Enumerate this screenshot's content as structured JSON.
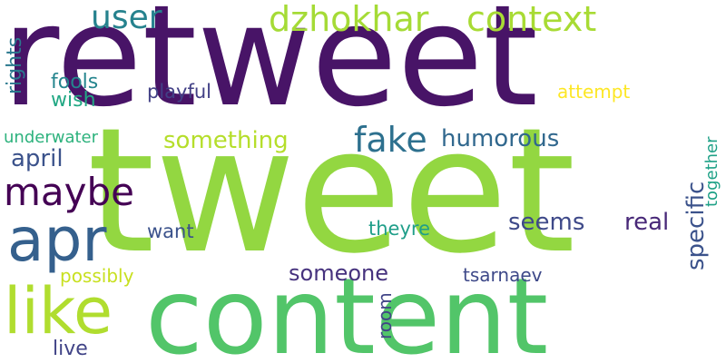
{
  "words": [
    {
      "text": "retweet",
      "color": "#481467",
      "vertical": false
    },
    {
      "text": "tweet",
      "color": "#93d741",
      "vertical": false
    },
    {
      "text": "content",
      "color": "#52c569",
      "vertical": false
    },
    {
      "text": "apr",
      "color": "#35608d",
      "vertical": false
    },
    {
      "text": "like",
      "color": "#b0dd2f",
      "vertical": false
    },
    {
      "text": "maybe",
      "color": "#440154",
      "vertical": false
    },
    {
      "text": "fake",
      "color": "#2d708e",
      "vertical": false
    },
    {
      "text": "user",
      "color": "#26828e",
      "vertical": false
    },
    {
      "text": "dzhokhar",
      "color": "#a5db36",
      "vertical": false
    },
    {
      "text": "context",
      "color": "#a8db34",
      "vertical": false
    },
    {
      "text": "humorous",
      "color": "#31688e",
      "vertical": false
    },
    {
      "text": "something",
      "color": "#b5de2b",
      "vertical": false
    },
    {
      "text": "april",
      "color": "#3b528b",
      "vertical": false
    },
    {
      "text": "specific",
      "color": "#3b528b",
      "vertical": true
    },
    {
      "text": "seems",
      "color": "#3e4989",
      "vertical": false
    },
    {
      "text": "real",
      "color": "#482878",
      "vertical": false
    },
    {
      "text": "someone",
      "color": "#46327e",
      "vertical": false
    },
    {
      "text": "rights",
      "color": "#2a788e",
      "vertical": true
    },
    {
      "text": "fools",
      "color": "#25858e",
      "vertical": false
    },
    {
      "text": "wish",
      "color": "#22a884",
      "vertical": false
    },
    {
      "text": "playful",
      "color": "#424086",
      "vertical": false
    },
    {
      "text": "attempt",
      "color": "#fde725",
      "vertical": false
    },
    {
      "text": "underwater",
      "color": "#2db27d",
      "vertical": false
    },
    {
      "text": "together",
      "color": "#1fa187",
      "vertical": true
    },
    {
      "text": "want",
      "color": "#3b528b",
      "vertical": false
    },
    {
      "text": "theyre",
      "color": "#1f9e89",
      "vertical": false
    },
    {
      "text": "possibly",
      "color": "#c8e020",
      "vertical": false
    },
    {
      "text": "tsarnaev",
      "color": "#3e4989",
      "vertical": false
    },
    {
      "text": "room",
      "color": "#414487",
      "vertical": true
    },
    {
      "text": "live",
      "color": "#414487",
      "vertical": false
    }
  ]
}
